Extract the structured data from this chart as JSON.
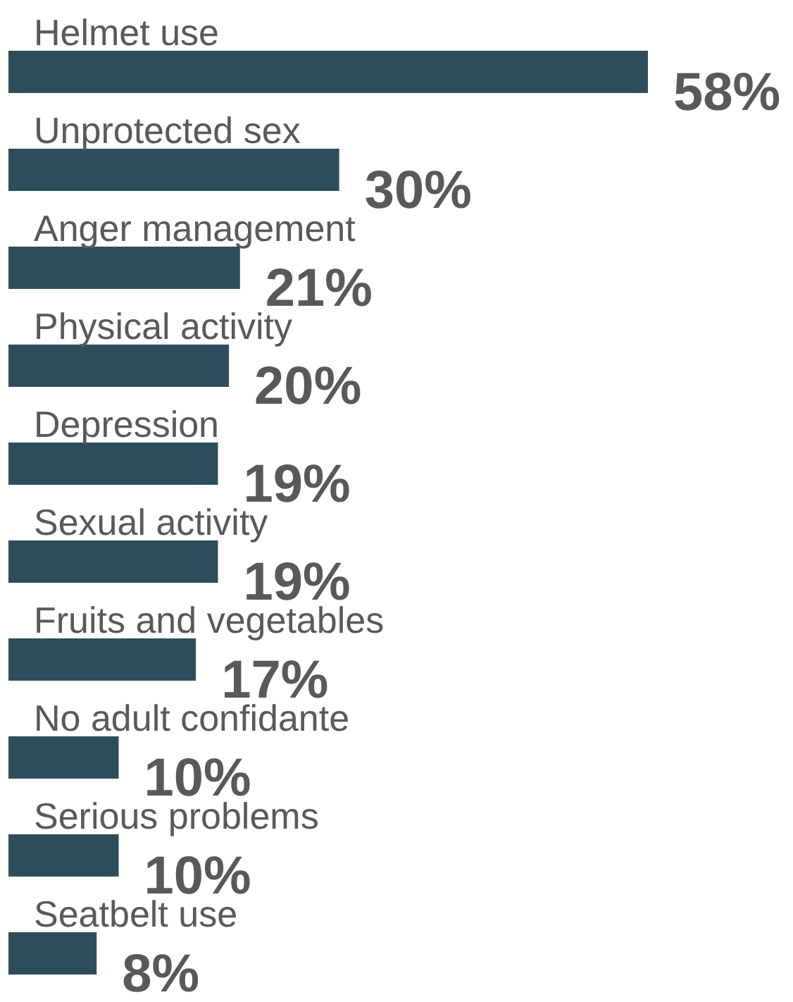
{
  "chart_data": {
    "type": "bar",
    "orientation": "horizontal",
    "categories": [
      "Helmet use",
      "Unprotected sex",
      "Anger management",
      "Physical activity",
      "Depression",
      "Sexual activity",
      "Fruits and vegetables",
      "No adult confidante",
      "Serious problems",
      "Seatbelt use"
    ],
    "values": [
      58,
      30,
      21,
      20,
      19,
      19,
      17,
      10,
      10,
      8
    ],
    "value_labels": [
      "58%",
      "30%",
      "21%",
      "20%",
      "19%",
      "19%",
      "17%",
      "10%",
      "10%",
      "8%"
    ],
    "color": "#2e4d5a"
  }
}
